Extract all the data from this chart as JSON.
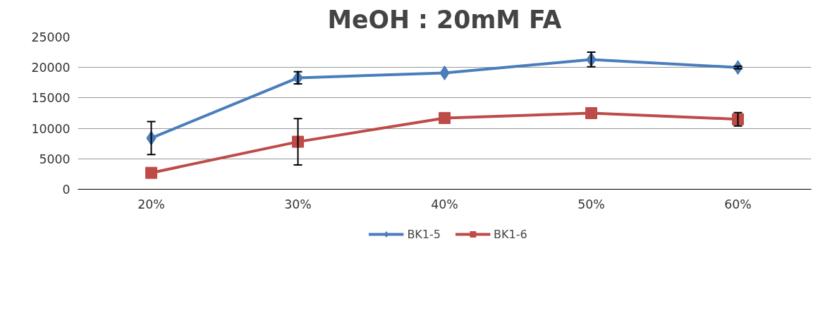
{
  "chart_data": {
    "type": "line",
    "title": "MeOH : 20mM FA",
    "categories": [
      "20%",
      "30%",
      "40%",
      "50%",
      "60%"
    ],
    "series": [
      {
        "name": "BK1-5",
        "color": "#4a7ebb",
        "marker": "diamond",
        "values": [
          8400,
          18300,
          19100,
          21300,
          20000
        ],
        "errors": [
          2700,
          1000,
          null,
          1200,
          200
        ]
      },
      {
        "name": "BK1-6",
        "color": "#be4b48",
        "marker": "square",
        "values": [
          2700,
          7800,
          11700,
          12500,
          11500
        ],
        "errors": [
          null,
          3800,
          null,
          null,
          1100
        ]
      }
    ],
    "ylim": [
      0,
      25000
    ],
    "yticks": [
      0,
      5000,
      10000,
      15000,
      20000,
      25000
    ],
    "grid": "y",
    "legend": "bottom"
  }
}
